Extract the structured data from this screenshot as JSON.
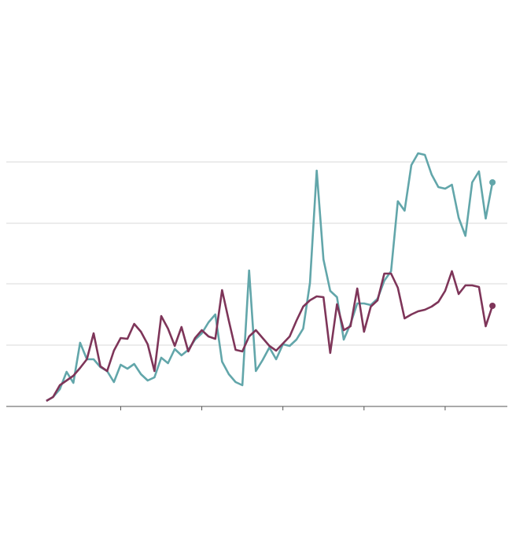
{
  "chart_data": {
    "type": "line",
    "x": [
      0,
      1,
      2,
      3,
      4,
      5,
      6,
      7,
      8,
      9,
      10,
      11,
      12,
      13,
      14,
      15,
      16,
      17,
      18,
      19,
      20,
      21,
      22,
      23,
      24,
      25,
      26,
      27,
      28,
      29,
      30,
      31,
      32,
      33,
      34,
      35,
      36,
      37,
      38,
      39,
      40,
      41,
      42,
      43,
      44,
      45,
      46,
      47,
      48,
      49,
      50,
      51,
      52,
      53,
      54,
      55,
      56,
      57,
      58,
      59,
      60,
      61,
      62,
      63,
      64,
      65,
      66
    ],
    "series": [
      {
        "color": "#62a6aa",
        "values": [
          7,
          12,
          22,
          44,
          30,
          81,
          60,
          60,
          50,
          45,
          31,
          53,
          48,
          54,
          41,
          33,
          37,
          62,
          55,
          73,
          65,
          72,
          85,
          93,
          107,
          117,
          57,
          41,
          31,
          27,
          173,
          45,
          59,
          75,
          60,
          79,
          77,
          85,
          99,
          157,
          300,
          187,
          147,
          139,
          85,
          105,
          131,
          131,
          129,
          137,
          160,
          172,
          261,
          249,
          307,
          322,
          320,
          295,
          279,
          277,
          282,
          240,
          217,
          285,
          299,
          239,
          285
        ]
      },
      {
        "color": "#7e3559",
        "values": [
          7,
          12,
          27,
          33,
          39,
          49,
          60,
          93,
          51,
          45,
          71,
          87,
          86,
          105,
          95,
          79,
          45,
          115,
          99,
          77,
          101,
          70,
          87,
          97,
          89,
          86,
          148,
          109,
          72,
          70,
          89,
          97,
          87,
          77,
          71,
          80,
          89,
          109,
          127,
          135,
          140,
          139,
          68,
          130,
          97,
          102,
          150,
          95,
          127,
          135,
          169,
          169,
          151,
          112,
          117,
          121,
          123,
          127,
          133,
          147,
          172,
          143,
          154,
          154,
          152,
          102,
          128
        ]
      }
    ],
    "xlim": [
      -5.92,
      68.2
    ],
    "xticks": [
      11,
      23,
      35,
      47,
      59
    ],
    "ylim": [
      0,
      330
    ],
    "yticks": [
      0,
      78,
      156,
      233,
      311
    ],
    "grid": true
  }
}
